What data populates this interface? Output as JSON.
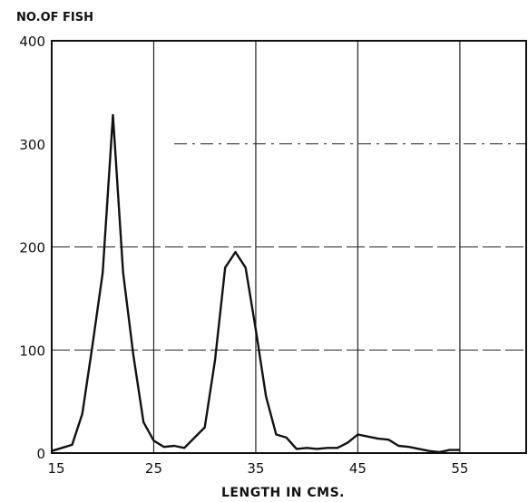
{
  "chart_data": {
    "type": "line",
    "title": "",
    "ylabel": "NO.OF FISH",
    "xlabel": "LENGTH IN CMS.",
    "xlim": [
      15,
      61.5
    ],
    "ylim": [
      0,
      400
    ],
    "x_ticks": [
      15,
      25,
      35,
      45,
      55
    ],
    "x_tick_labels": [
      "15",
      "25",
      "35",
      "45",
      "55"
    ],
    "y_ticks": [
      0,
      100,
      200,
      300,
      400
    ],
    "y_tick_labels": [
      "0",
      "100",
      "200",
      "300",
      "400"
    ],
    "grid": true,
    "legend": "none",
    "line_color": "#111111",
    "series": [
      {
        "x": [
          15,
          16,
          17,
          18,
          19,
          20,
          21,
          22,
          23,
          24,
          25,
          26,
          27,
          28,
          29,
          30,
          31,
          32,
          33,
          34,
          35,
          36,
          37,
          38,
          39,
          40,
          41,
          42,
          43,
          44,
          45,
          46,
          47,
          48,
          49,
          50,
          51,
          52,
          53,
          54,
          55
        ],
        "y": [
          2,
          5,
          8,
          38,
          105,
          175,
          328,
          175,
          95,
          30,
          12,
          6,
          7,
          5,
          15,
          25,
          90,
          180,
          195,
          180,
          120,
          55,
          18,
          15,
          4,
          5,
          4,
          5,
          5,
          10,
          18,
          16,
          14,
          13,
          7,
          6,
          4,
          2,
          1,
          3,
          3
        ]
      }
    ]
  }
}
